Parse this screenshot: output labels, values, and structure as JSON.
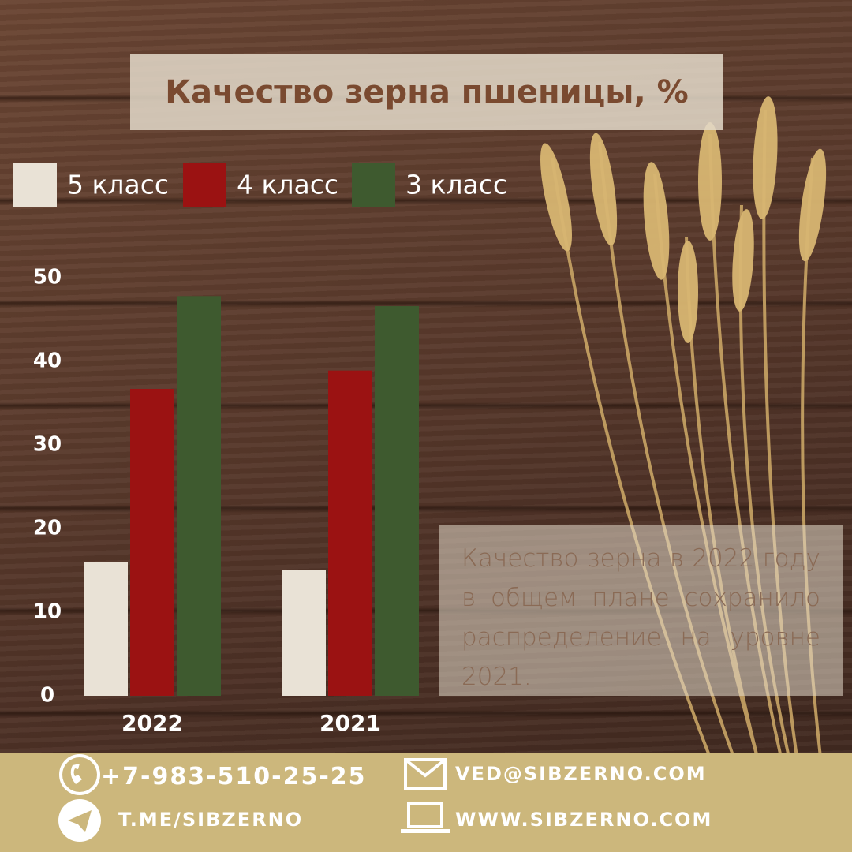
{
  "chart_data": {
    "type": "bar",
    "title": "Качество зерна пшеницы, %",
    "categories": [
      "2022",
      "2021"
    ],
    "series": [
      {
        "name": "5 класс",
        "color": "#e9e2d6",
        "values": [
          16,
          15
        ]
      },
      {
        "name": "4 класс",
        "color": "#9b1212",
        "values": [
          36.7,
          38.9
        ]
      },
      {
        "name": "3 класс",
        "color": "#3e5a2f",
        "values": [
          47.8,
          46.6
        ]
      }
    ],
    "ylim": [
      0,
      50
    ],
    "yticks": [
      0,
      10,
      20,
      30,
      40,
      50
    ],
    "grid": false,
    "annotation": "Качество зерна в 2022 году в общем плане сохранило распределение на уровне 2021."
  },
  "footer": {
    "phone": "+7-983-510-25-25",
    "email": "VED@SIBZERNO.COM",
    "telegram": "T.ME/SIBZERNO",
    "website": "WWW.SIBZERNO.COM"
  }
}
